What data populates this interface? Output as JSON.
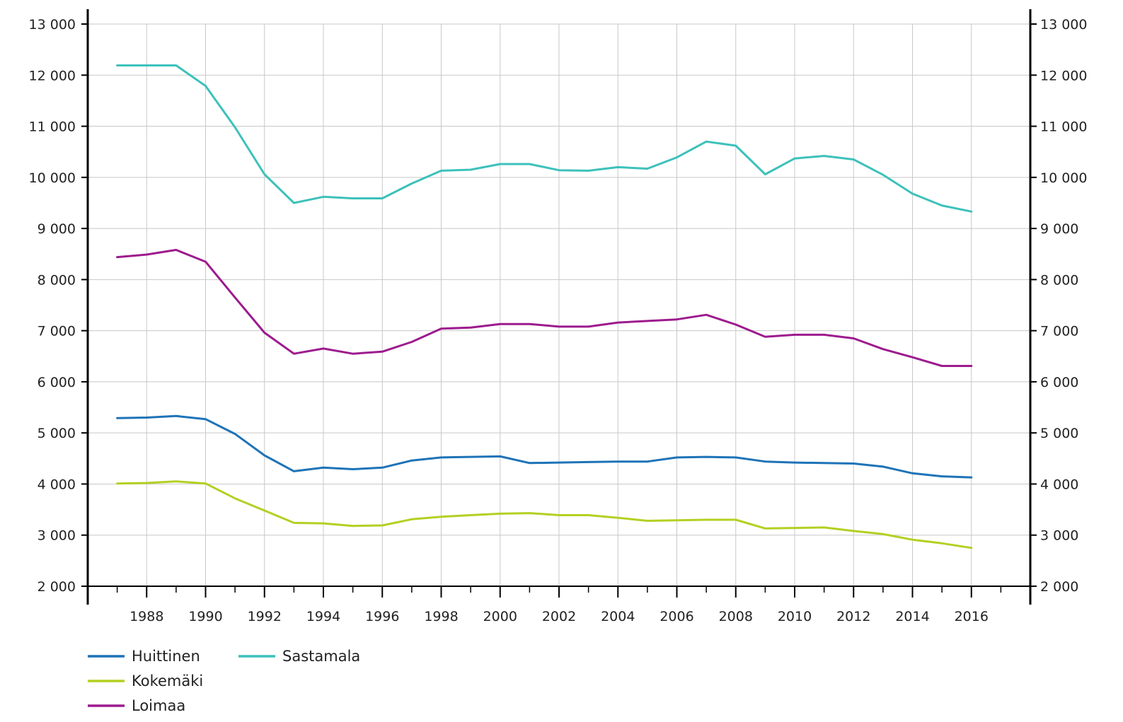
{
  "chart_data": {
    "type": "line",
    "title": "",
    "xlabel": "",
    "ylabel": "",
    "x": [
      1987,
      1988,
      1989,
      1990,
      1991,
      1992,
      1993,
      1994,
      1995,
      1996,
      1997,
      1998,
      1999,
      2000,
      2001,
      2002,
      2003,
      2004,
      2005,
      2006,
      2007,
      2008,
      2009,
      2010,
      2011,
      2012,
      2013,
      2014,
      2015,
      2016
    ],
    "xlim": [
      1986,
      2018
    ],
    "ylim": [
      2000,
      13000
    ],
    "x_ticks": [
      1988,
      1990,
      1992,
      1994,
      1996,
      1998,
      2000,
      2002,
      2004,
      2006,
      2008,
      2010,
      2012,
      2014,
      2016
    ],
    "x_tick_labels": [
      "1988",
      "1990",
      "1992",
      "1994",
      "1996",
      "1998",
      "2000",
      "2002",
      "2004",
      "2006",
      "2008",
      "2010",
      "2012",
      "2014",
      "2016"
    ],
    "y_ticks": [
      2000,
      3000,
      4000,
      5000,
      6000,
      7000,
      8000,
      9000,
      10000,
      11000,
      12000,
      13000
    ],
    "y_tick_labels": [
      "2 000",
      "3 000",
      "4 000",
      "5 000",
      "6 000",
      "7 000",
      "8 000",
      "9 000",
      "10 000",
      "11 000",
      "12 000",
      "13 000"
    ],
    "y_axis_both_sides": true,
    "grid": true,
    "legend_position": "bottom-left",
    "series": [
      {
        "name": "Huittinen",
        "color": "#1e73b7",
        "values": [
          5290,
          5300,
          5330,
          5270,
          4980,
          4560,
          4250,
          4320,
          4290,
          4320,
          4460,
          4520,
          4530,
          4540,
          4410,
          4420,
          4430,
          4440,
          4440,
          4520,
          4530,
          4520,
          4440,
          4420,
          4410,
          4400,
          4340,
          4210,
          4150,
          4130
        ]
      },
      {
        "name": "Kokemäki",
        "color": "#b5cf22",
        "values": [
          4010,
          4020,
          4050,
          4010,
          3720,
          3480,
          3240,
          3230,
          3180,
          3190,
          3310,
          3360,
          3390,
          3420,
          3430,
          3390,
          3390,
          3340,
          3280,
          3290,
          3300,
          3300,
          3130,
          3140,
          3150,
          3080,
          3020,
          2910,
          2840,
          2750
        ]
      },
      {
        "name": "Loimaa",
        "color": "#9d1b8e",
        "values": [
          8440,
          8490,
          8580,
          8350,
          7650,
          6960,
          6550,
          6650,
          6550,
          6590,
          6780,
          7040,
          7060,
          7130,
          7130,
          7080,
          7080,
          7160,
          7190,
          7220,
          7310,
          7120,
          6880,
          6920,
          6920,
          6850,
          6640,
          6480,
          6310,
          6310
        ]
      },
      {
        "name": "Sastamala",
        "color": "#3dc1bb",
        "values": [
          12190,
          12190,
          12190,
          11790,
          10980,
          10060,
          9500,
          9620,
          9590,
          9590,
          9880,
          10130,
          10150,
          10260,
          10260,
          10140,
          10130,
          10200,
          10170,
          10390,
          10700,
          10620,
          10060,
          10370,
          10420,
          10350,
          10050,
          9680,
          9450,
          9330
        ]
      }
    ]
  }
}
